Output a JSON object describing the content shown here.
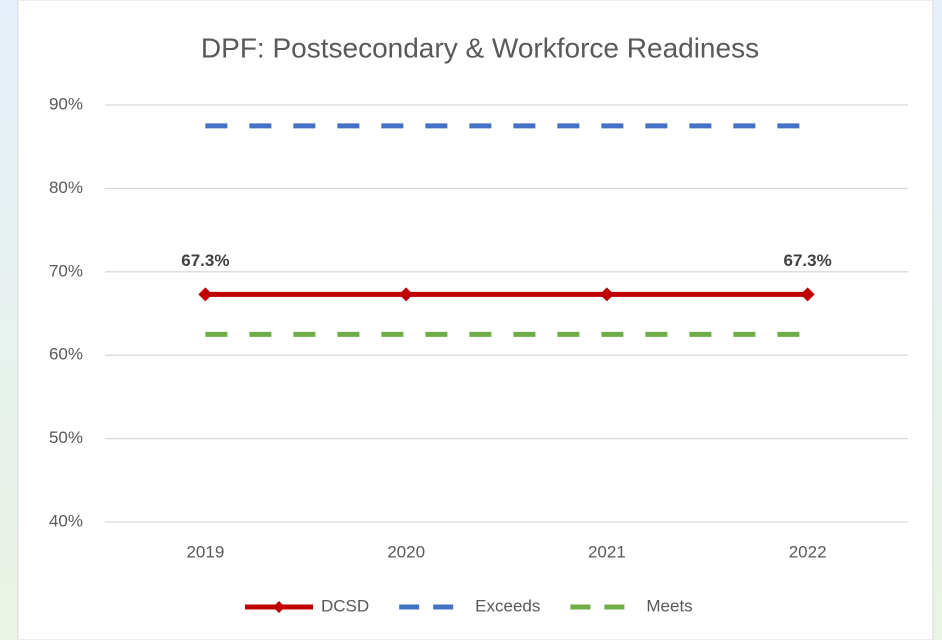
{
  "chart_data": {
    "type": "line",
    "title": "DPF: Postsecondary & Workforce Readiness",
    "categories": [
      "2019",
      "2020",
      "2021",
      "2022"
    ],
    "series": [
      {
        "name": "DCSD",
        "color": "#c00000",
        "line_style": "solid",
        "marker": "diamond",
        "values": [
          67.3,
          67.3,
          67.3,
          67.3
        ],
        "value_labels": [
          "67.3%",
          null,
          null,
          "67.3%"
        ]
      },
      {
        "name": "Exceeds",
        "color": "#4472c4",
        "line_style": "dashed",
        "values": [
          87.5,
          87.5,
          87.5,
          87.5
        ]
      },
      {
        "name": "Meets",
        "color": "#70ad47",
        "line_style": "dashed",
        "values": [
          62.5,
          62.5,
          62.5,
          62.5
        ]
      }
    ],
    "ylim": [
      40,
      90
    ],
    "yticks": [
      {
        "value": 40,
        "label": "40%"
      },
      {
        "value": 50,
        "label": "50%"
      },
      {
        "value": 60,
        "label": "60%"
      },
      {
        "value": 70,
        "label": "70%"
      },
      {
        "value": 80,
        "label": "80%"
      },
      {
        "value": 90,
        "label": "90%"
      }
    ],
    "grid": true,
    "legend": "bottom"
  }
}
